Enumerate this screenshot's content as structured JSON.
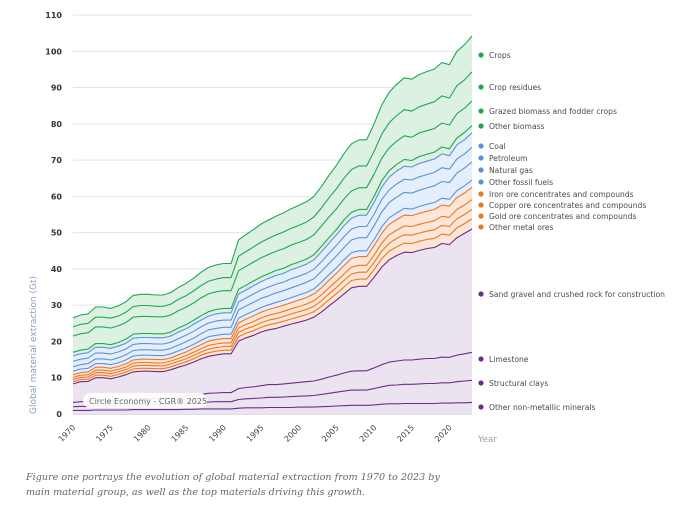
{
  "caption": "Figure one portrays the evolution of global material extraction from 1970 to 2023 by main material group, as well as the top materials driving this growth.",
  "chart_data": {
    "type": "area",
    "stacked": true,
    "title": "",
    "xlabel": "Year",
    "ylabel": "Global material extraction (Gt)",
    "ylim": [
      0,
      110
    ],
    "xlim": [
      1970,
      2023
    ],
    "yticks": [
      0,
      10,
      20,
      30,
      40,
      50,
      60,
      70,
      80,
      90,
      100,
      110
    ],
    "xticks": [
      1970,
      1975,
      1980,
      1985,
      1990,
      1995,
      2000,
      2005,
      2010,
      2015,
      2020
    ],
    "grid": true,
    "legend_position": "right",
    "watermark": "Circle Economy - CGR® 2025",
    "group_colors": {
      "non_metallic": {
        "line": "#6b2d8c",
        "fill": "#ece3f0"
      },
      "metals": {
        "line": "#e8782a",
        "fill": "#fde6d5"
      },
      "fossil": {
        "line": "#5b93d9",
        "fill": "#e5eefb"
      },
      "biomass": {
        "line": "#1fa850",
        "fill": "#dcf1e2"
      }
    },
    "x": [
      1970,
      1971,
      1972,
      1973,
      1974,
      1975,
      1976,
      1977,
      1978,
      1979,
      1980,
      1981,
      1982,
      1983,
      1984,
      1985,
      1986,
      1987,
      1988,
      1989,
      1990,
      1991,
      1992,
      1993,
      1994,
      1995,
      1996,
      1997,
      1998,
      1999,
      2000,
      2001,
      2002,
      2003,
      2004,
      2005,
      2006,
      2007,
      2008,
      2009,
      2010,
      2011,
      2012,
      2013,
      2014,
      2015,
      2016,
      2017,
      2018,
      2019,
      2020,
      2021,
      2022,
      2023
    ],
    "series": [
      {
        "name": "Other non-metallic minerals",
        "group": "non_metallic",
        "values": [
          1.0,
          1.0,
          1.0,
          1.1,
          1.1,
          1.1,
          1.1,
          1.1,
          1.2,
          1.2,
          1.2,
          1.2,
          1.2,
          1.2,
          1.2,
          1.3,
          1.3,
          1.4,
          1.4,
          1.4,
          1.4,
          1.4,
          1.6,
          1.7,
          1.7,
          1.7,
          1.8,
          1.8,
          1.8,
          1.8,
          1.9,
          1.9,
          1.9,
          2.0,
          2.1,
          2.2,
          2.3,
          2.4,
          2.4,
          2.4,
          2.5,
          2.7,
          2.8,
          2.8,
          2.9,
          2.9,
          2.9,
          2.9,
          2.9,
          3.0,
          3.0,
          3.1,
          3.1,
          3.2
        ]
      },
      {
        "name": "Structural clays",
        "group": "non_metallic",
        "values": [
          1.0,
          1.1,
          1.1,
          1.2,
          1.2,
          1.2,
          1.2,
          1.3,
          1.4,
          1.4,
          1.4,
          1.4,
          1.4,
          1.5,
          1.6,
          1.6,
          1.7,
          1.8,
          1.9,
          2.0,
          2.0,
          2.0,
          2.4,
          2.5,
          2.6,
          2.7,
          2.8,
          2.8,
          2.9,
          3.0,
          3.0,
          3.1,
          3.2,
          3.4,
          3.6,
          3.8,
          4.0,
          4.2,
          4.2,
          4.2,
          4.5,
          4.8,
          5.1,
          5.2,
          5.3,
          5.3,
          5.4,
          5.5,
          5.5,
          5.6,
          5.6,
          5.8,
          6.0,
          6.1
        ]
      },
      {
        "name": "Limestone",
        "group": "non_metallic",
        "values": [
          1.2,
          1.3,
          1.3,
          1.5,
          1.5,
          1.4,
          1.5,
          1.6,
          1.7,
          1.7,
          1.7,
          1.7,
          1.7,
          1.8,
          1.9,
          2.0,
          2.1,
          2.2,
          2.4,
          2.4,
          2.5,
          2.5,
          3.0,
          3.1,
          3.2,
          3.4,
          3.5,
          3.5,
          3.6,
          3.7,
          3.8,
          3.9,
          4.0,
          4.2,
          4.5,
          4.7,
          5.0,
          5.2,
          5.3,
          5.3,
          5.7,
          6.1,
          6.4,
          6.6,
          6.7,
          6.7,
          6.8,
          6.9,
          6.9,
          7.1,
          7.0,
          7.3,
          7.5,
          7.7
        ]
      },
      {
        "name": "Sand gravel and crushed rock for construction",
        "group": "non_metallic",
        "values": [
          5.1,
          5.5,
          5.6,
          6.2,
          6.2,
          6.0,
          6.4,
          6.8,
          7.3,
          7.5,
          7.5,
          7.4,
          7.4,
          7.7,
          8.2,
          8.6,
          9.2,
          9.8,
          10.2,
          10.5,
          10.7,
          10.7,
          13.1,
          13.7,
          14.2,
          14.8,
          15.1,
          15.5,
          15.9,
          16.3,
          16.6,
          17.0,
          17.6,
          18.5,
          19.6,
          20.7,
          21.8,
          23.0,
          23.3,
          23.3,
          25.0,
          26.9,
          28.2,
          29.1,
          29.7,
          29.6,
          30.0,
          30.3,
          30.6,
          31.3,
          31.1,
          32.4,
          33.2,
          34.0
        ]
      },
      {
        "name": "Other metal ores",
        "group": "metals",
        "values": [
          0.6,
          0.6,
          0.6,
          0.7,
          0.7,
          0.7,
          0.7,
          0.7,
          0.8,
          0.8,
          0.8,
          0.8,
          0.8,
          0.8,
          0.8,
          0.9,
          0.9,
          1.0,
          1.0,
          1.0,
          1.0,
          1.0,
          1.2,
          1.3,
          1.3,
          1.3,
          1.4,
          1.4,
          1.4,
          1.4,
          1.5,
          1.5,
          1.5,
          1.6,
          1.7,
          1.8,
          1.9,
          2.0,
          2.0,
          2.0,
          2.1,
          2.3,
          2.4,
          2.4,
          2.5,
          2.5,
          2.5,
          2.5,
          2.5,
          2.6,
          2.6,
          2.7,
          2.7,
          2.8
        ]
      },
      {
        "name": "Gold ore concentrates and compounds",
        "group": "metals",
        "values": [
          0.6,
          0.6,
          0.6,
          0.7,
          0.7,
          0.7,
          0.7,
          0.7,
          0.8,
          0.8,
          0.8,
          0.8,
          0.8,
          0.8,
          0.8,
          0.8,
          0.9,
          0.9,
          1.0,
          1.0,
          1.0,
          1.0,
          1.2,
          1.2,
          1.2,
          1.3,
          1.3,
          1.3,
          1.3,
          1.4,
          1.4,
          1.4,
          1.5,
          1.5,
          1.6,
          1.7,
          1.8,
          1.8,
          1.9,
          1.9,
          2.0,
          2.1,
          2.2,
          2.3,
          2.3,
          2.3,
          2.3,
          2.3,
          2.4,
          2.4,
          2.4,
          2.5,
          2.5,
          2.6
        ]
      },
      {
        "name": "Copper ore concentrates and compounds",
        "group": "metals",
        "values": [
          0.6,
          0.6,
          0.6,
          0.7,
          0.7,
          0.7,
          0.7,
          0.7,
          0.8,
          0.8,
          0.8,
          0.8,
          0.8,
          0.8,
          0.8,
          0.9,
          0.9,
          0.9,
          1.0,
          1.0,
          1.0,
          1.0,
          1.2,
          1.2,
          1.3,
          1.3,
          1.3,
          1.4,
          1.4,
          1.4,
          1.4,
          1.5,
          1.5,
          1.6,
          1.7,
          1.7,
          1.8,
          1.9,
          1.9,
          1.9,
          2.0,
          2.2,
          2.3,
          2.3,
          2.4,
          2.4,
          2.4,
          2.4,
          2.5,
          2.5,
          2.5,
          2.6,
          2.6,
          2.7
        ]
      },
      {
        "name": "Iron ore concentrates and compounds",
        "group": "metals",
        "values": [
          0.7,
          0.7,
          0.8,
          0.8,
          0.8,
          0.8,
          0.8,
          0.9,
          0.9,
          0.9,
          0.9,
          0.9,
          0.9,
          0.9,
          1.0,
          1.0,
          1.1,
          1.1,
          1.2,
          1.2,
          1.2,
          1.2,
          1.4,
          1.5,
          1.6,
          1.6,
          1.6,
          1.7,
          1.7,
          1.7,
          1.8,
          1.8,
          1.9,
          2.0,
          2.1,
          2.2,
          2.3,
          2.4,
          2.4,
          2.4,
          2.6,
          2.7,
          2.9,
          2.9,
          3.0,
          3.0,
          3.0,
          3.1,
          3.1,
          3.1,
          3.1,
          3.3,
          3.3,
          3.4
        ]
      },
      {
        "name": "Other fossil fuels",
        "group": "fossil",
        "values": [
          1.0,
          1.0,
          1.0,
          1.0,
          1.0,
          1.0,
          1.0,
          1.1,
          1.1,
          1.1,
          1.1,
          1.1,
          1.1,
          1.1,
          1.1,
          1.1,
          1.1,
          1.2,
          1.2,
          1.2,
          1.2,
          1.2,
          1.3,
          1.3,
          1.3,
          1.3,
          1.3,
          1.4,
          1.4,
          1.4,
          1.4,
          1.4,
          1.4,
          1.5,
          1.5,
          1.5,
          1.6,
          1.6,
          1.6,
          1.6,
          1.7,
          1.8,
          1.8,
          1.8,
          1.9,
          1.8,
          1.9,
          1.9,
          1.9,
          1.9,
          1.9,
          1.9,
          2.0,
          2.0
        ]
      },
      {
        "name": "Natural gas",
        "group": "fossil",
        "values": [
          1.2,
          1.2,
          1.3,
          1.3,
          1.3,
          1.3,
          1.4,
          1.4,
          1.5,
          1.5,
          1.5,
          1.5,
          1.5,
          1.5,
          1.6,
          1.7,
          1.7,
          1.8,
          1.9,
          1.9,
          1.9,
          1.9,
          2.3,
          2.3,
          2.4,
          2.5,
          2.5,
          2.6,
          2.6,
          2.7,
          2.7,
          2.8,
          2.8,
          3.0,
          3.1,
          3.3,
          3.4,
          3.5,
          3.6,
          3.6,
          3.8,
          4.1,
          4.2,
          4.4,
          4.4,
          4.4,
          4.5,
          4.5,
          4.6,
          4.6,
          4.6,
          4.8,
          4.9,
          5.0
        ]
      },
      {
        "name": "Petroleum",
        "group": "fossil",
        "values": [
          1.5,
          1.5,
          1.5,
          1.6,
          1.6,
          1.6,
          1.6,
          1.6,
          1.7,
          1.7,
          1.7,
          1.7,
          1.7,
          1.7,
          1.8,
          1.8,
          1.9,
          1.9,
          1.9,
          2.0,
          2.0,
          2.0,
          2.2,
          2.2,
          2.3,
          2.3,
          2.4,
          2.4,
          2.4,
          2.5,
          2.5,
          2.5,
          2.6,
          2.7,
          2.8,
          2.9,
          3.0,
          3.0,
          3.1,
          3.1,
          3.2,
          3.4,
          3.5,
          3.6,
          3.6,
          3.6,
          3.7,
          3.7,
          3.7,
          3.8,
          3.7,
          3.9,
          3.9,
          4.0
        ]
      },
      {
        "name": "Coal",
        "group": "fossil",
        "values": [
          1.5,
          1.5,
          1.5,
          1.6,
          1.6,
          1.6,
          1.6,
          1.6,
          1.7,
          1.7,
          1.7,
          1.7,
          1.7,
          1.7,
          1.8,
          1.8,
          1.9,
          1.9,
          1.9,
          2.0,
          2.0,
          2.0,
          2.2,
          2.2,
          2.3,
          2.3,
          2.4,
          2.4,
          2.4,
          2.5,
          2.5,
          2.5,
          2.6,
          2.7,
          2.8,
          2.9,
          3.0,
          3.0,
          3.1,
          3.1,
          3.2,
          3.4,
          3.5,
          3.6,
          3.6,
          3.6,
          3.7,
          3.7,
          3.7,
          3.8,
          3.7,
          3.9,
          3.9,
          4.0
        ]
      },
      {
        "name": "Other biomass",
        "group": "biomass",
        "values": [
          1.0,
          1.0,
          1.0,
          1.0,
          1.0,
          1.0,
          1.0,
          1.1,
          1.1,
          1.1,
          1.1,
          1.1,
          1.1,
          1.1,
          1.1,
          1.1,
          1.1,
          1.2,
          1.2,
          1.2,
          1.2,
          1.2,
          1.3,
          1.3,
          1.3,
          1.3,
          1.3,
          1.4,
          1.4,
          1.4,
          1.4,
          1.4,
          1.4,
          1.5,
          1.5,
          1.5,
          1.6,
          1.6,
          1.6,
          1.6,
          1.7,
          1.8,
          1.8,
          1.8,
          1.9,
          1.8,
          1.9,
          1.9,
          1.9,
          1.9,
          1.9,
          1.9,
          2.0,
          2.0
        ]
      },
      {
        "name": "Grazed biomass and fodder crops",
        "group": "biomass",
        "values": [
          4.5,
          4.5,
          4.5,
          4.6,
          4.6,
          4.6,
          4.6,
          4.6,
          4.7,
          4.7,
          4.7,
          4.7,
          4.7,
          4.7,
          4.8,
          4.8,
          4.8,
          4.9,
          4.9,
          4.9,
          4.9,
          4.9,
          5.1,
          5.2,
          5.2,
          5.3,
          5.3,
          5.3,
          5.4,
          5.4,
          5.4,
          5.4,
          5.5,
          5.6,
          5.7,
          5.7,
          5.8,
          5.9,
          6.0,
          6.0,
          6.1,
          6.2,
          6.3,
          6.4,
          6.5,
          6.4,
          6.5,
          6.5,
          6.5,
          6.6,
          6.6,
          6.7,
          6.7,
          6.8
        ]
      },
      {
        "name": "Crop residues",
        "group": "biomass",
        "values": [
          2.5,
          2.6,
          2.6,
          2.7,
          2.7,
          2.7,
          2.7,
          2.8,
          2.9,
          3.0,
          3.0,
          2.9,
          2.9,
          3.0,
          3.1,
          3.2,
          3.3,
          3.4,
          3.5,
          3.5,
          3.6,
          3.6,
          4.0,
          4.1,
          4.2,
          4.3,
          4.4,
          4.5,
          4.6,
          4.6,
          4.7,
          4.8,
          4.9,
          5.0,
          5.3,
          5.5,
          5.7,
          5.9,
          6.0,
          6.0,
          6.3,
          6.6,
          6.9,
          7.1,
          7.2,
          7.2,
          7.2,
          7.3,
          7.4,
          7.5,
          7.4,
          7.7,
          7.8,
          8.0
        ]
      },
      {
        "name": "Crops",
        "group": "biomass",
        "values": [
          2.5,
          2.6,
          2.6,
          2.8,
          2.8,
          2.7,
          2.8,
          2.9,
          3.1,
          3.1,
          3.1,
          3.1,
          3.1,
          3.2,
          3.3,
          3.4,
          3.5,
          3.7,
          3.8,
          3.9,
          3.9,
          3.9,
          4.5,
          4.7,
          4.8,
          5.0,
          5.1,
          5.2,
          5.3,
          5.4,
          5.5,
          5.6,
          5.7,
          5.9,
          6.2,
          6.5,
          6.8,
          7.1,
          7.2,
          7.2,
          7.6,
          8.1,
          8.4,
          8.6,
          8.8,
          8.8,
          8.9,
          9.0,
          9.0,
          9.2,
          9.2,
          9.5,
          9.7,
          9.9
        ]
      }
    ],
    "legend": [
      {
        "label": "Crops",
        "group": "biomass"
      },
      {
        "label": "Crop residues",
        "group": "biomass"
      },
      {
        "label": "Grazed biomass and fodder crops",
        "group": "biomass"
      },
      {
        "label": "Other biomass",
        "group": "biomass"
      },
      {
        "label": "Coal",
        "group": "fossil"
      },
      {
        "label": "Petroleum",
        "group": "fossil"
      },
      {
        "label": "Natural gas",
        "group": "fossil"
      },
      {
        "label": "Other fossil fuels",
        "group": "fossil"
      },
      {
        "label": "Iron ore concentrates and compounds",
        "group": "metals"
      },
      {
        "label": "Copper ore concentrates and compounds",
        "group": "metals"
      },
      {
        "label": "Gold ore concentrates and compounds",
        "group": "metals"
      },
      {
        "label": "Other metal ores",
        "group": "metals"
      },
      {
        "label": "Sand gravel and crushed rock for construction",
        "group": "non_metallic"
      },
      {
        "label": "Limestone",
        "group": "non_metallic"
      },
      {
        "label": "Structural clays",
        "group": "non_metallic"
      },
      {
        "label": "Other non-metallic minerals",
        "group": "non_metallic"
      }
    ]
  }
}
